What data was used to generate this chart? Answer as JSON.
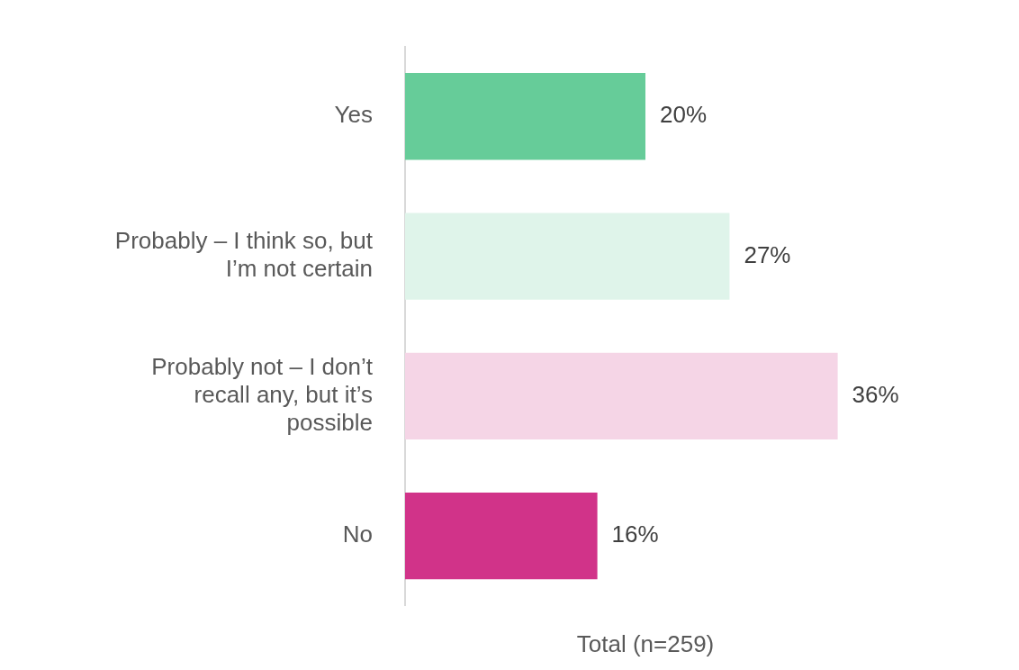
{
  "chart_data": {
    "type": "bar",
    "orientation": "horizontal",
    "xlabel": "Total (n=259)",
    "categories": [
      "Yes",
      "Probably – I think so, but I’m not certain",
      "Probably not – I don’t recall any, but it’s possible",
      "No"
    ],
    "values": [
      20,
      27,
      36,
      16
    ],
    "colors": [
      "#66cc99",
      "#dff4ea",
      "#f5d5e6",
      "#d13389"
    ],
    "value_labels": [
      "20%",
      "27%",
      "36%",
      "16%"
    ],
    "tick_labels": "y"
  }
}
